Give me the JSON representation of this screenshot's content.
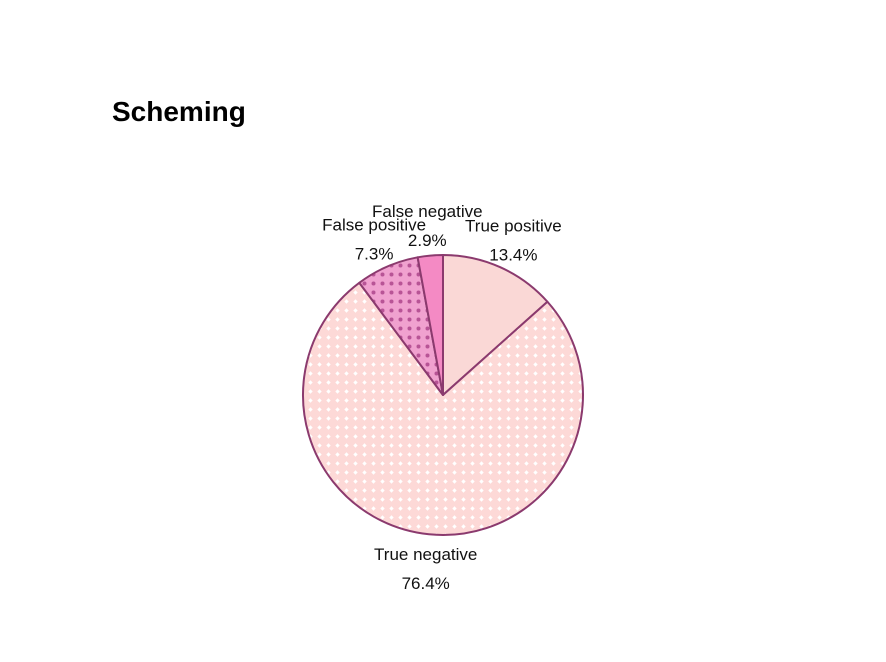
{
  "chart_data": {
    "type": "pie",
    "title": "Scheming",
    "slices": [
      {
        "label": "True positive",
        "value": 13.4,
        "value_label": "13.4%",
        "color": "#FAD8D6",
        "pattern": "none"
      },
      {
        "label": "True negative",
        "value": 76.4,
        "value_label": "76.4%",
        "color": "#FDD9D7",
        "pattern": "white-diamond-dots"
      },
      {
        "label": "False positive",
        "value": 7.3,
        "value_label": "7.3%",
        "color": "#F0A1CF",
        "pattern": "dark-dots"
      },
      {
        "label": "False negative",
        "value": 2.9,
        "value_label": "2.9%",
        "color": "#F48AC4",
        "pattern": "none"
      }
    ],
    "start_angle": "12 o'clock",
    "direction": "clockwise",
    "edge_color": "#8B3A6E",
    "legend": "none"
  }
}
